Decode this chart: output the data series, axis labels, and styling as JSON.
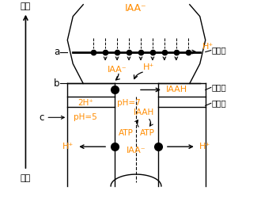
{
  "fig_width": 3.49,
  "fig_height": 2.5,
  "dpi": 100,
  "bg_color": "#ffffff",
  "orange": "#FF8C00",
  "black": "#000000",
  "labels": {
    "IAA_top": "IAA⁻",
    "IAA_mid": "IAA⁻",
    "IAA_bot": "IAA⁻",
    "IAAH_1": "IAAH",
    "IAAH_2": "IAAH",
    "H_plus_tr": "H⁺",
    "H_plus_mid": "H⁺",
    "H_plus_bl": "H⁺",
    "H_plus_br": "H⁺",
    "2Hplus": "2H⁺",
    "pH5": "pH=5",
    "pH7": "pH=7",
    "ATP1": "ATP",
    "ATP2": "ATP",
    "a": "a",
    "b": "b",
    "c": "c",
    "ding": "顶部",
    "ji": "基部",
    "xibomo": "细胞膜",
    "xibubi": "细胞壁",
    "xibozhi": "细胞质"
  }
}
